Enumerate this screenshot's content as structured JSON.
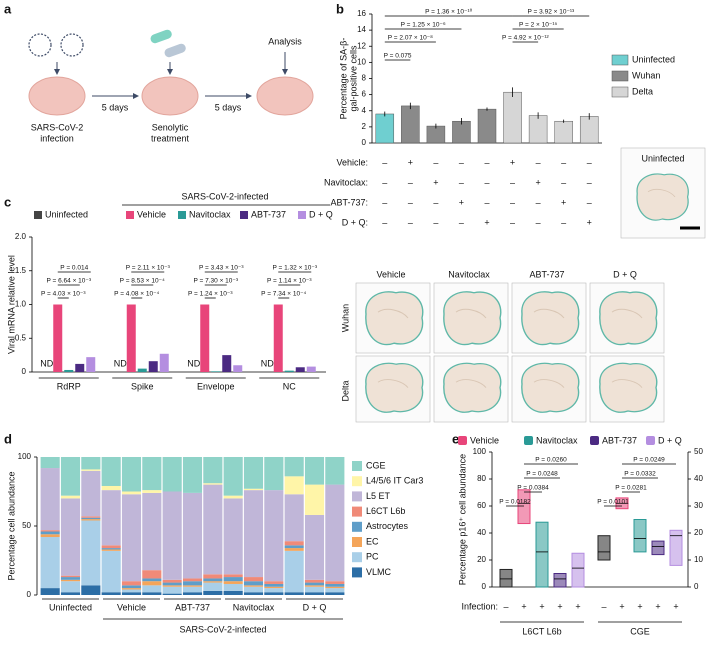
{
  "panel_labels": [
    "a",
    "b",
    "c",
    "d",
    "e"
  ],
  "diagram": {
    "steps": [
      [
        "SARS-CoV-2",
        "infection"
      ],
      [
        "Senolytic",
        "treatment"
      ],
      [
        "Analysis"
      ]
    ],
    "intervals": [
      "5 days",
      "5 days"
    ]
  },
  "micrographs": {
    "inset": "Uninfected",
    "columns": [
      "Vehicle",
      "Navitoclax",
      "ABT-737",
      "D + Q"
    ],
    "rows": [
      "Wuhan",
      "Delta"
    ]
  },
  "chart_data": [
    {
      "type": "bar",
      "ylabel": [
        "Percentage of SA-β-",
        "gal-positive cells"
      ],
      "ylim": [
        0,
        16
      ],
      "yticks": [
        0,
        2,
        4,
        6,
        8,
        10,
        12,
        14,
        16
      ],
      "values": [
        3.6,
        4.6,
        2.1,
        2.7,
        4.2,
        6.3,
        3.4,
        2.7,
        3.3
      ],
      "errors": [
        0.3,
        0.4,
        0.3,
        0.4,
        0.2,
        0.6,
        0.4,
        0.2,
        0.4
      ],
      "colors": [
        "#6fcfd0",
        "#8a8a8a",
        "#8a8a8a",
        "#8a8a8a",
        "#8a8a8a",
        "#d6d6d6",
        "#d6d6d6",
        "#d6d6d6",
        "#d6d6d6"
      ],
      "legend": [
        {
          "name": "Uninfected",
          "color": "#6fcfd0"
        },
        {
          "name": "Wuhan",
          "color": "#8a8a8a"
        },
        {
          "name": "Delta",
          "color": "#d6d6d6"
        }
      ],
      "conditions": [
        {
          "name": "Vehicle:",
          "marks": [
            "–",
            "+",
            "–",
            "–",
            "–",
            "+",
            "–",
            "–",
            "–"
          ]
        },
        {
          "name": "Navitoclax:",
          "marks": [
            "–",
            "–",
            "+",
            "–",
            "–",
            "–",
            "+",
            "–",
            "–"
          ]
        },
        {
          "name": "ABT-737:",
          "marks": [
            "–",
            "–",
            "–",
            "+",
            "–",
            "–",
            "–",
            "+",
            "–"
          ]
        },
        {
          "name": "D + Q:",
          "marks": [
            "–",
            "–",
            "–",
            "–",
            "+",
            "–",
            "–",
            "–",
            "+"
          ]
        }
      ],
      "annotations": [
        "P = 1.36 × 10⁻¹⁰",
        "P = 1.25 × 10⁻⁶",
        "P = 2.07 × 10⁻⁸",
        "P = 0.075",
        "P = 3.92 × 10⁻¹³",
        "P = 2 × 10⁻¹⁵",
        "P = 4.92 × 10⁻¹²"
      ]
    },
    {
      "type": "grouped_bar",
      "ylabel": "Viral mRNA relative level",
      "header": "SARS-CoV-2-infected",
      "ylim": [
        0,
        2
      ],
      "yticks": [
        0,
        0.5,
        {
          "value": 1,
          "label": "1.0"
        },
        1.5,
        {
          "value": 2,
          "label": "2.0"
        }
      ],
      "categories": [
        "RdRP",
        "Spike",
        "Envelope",
        "NC"
      ],
      "series": [
        {
          "name": "Uninfected",
          "color": "#444444",
          "values": [
            null,
            null,
            null,
            null
          ],
          "value_labels": [
            "ND",
            "ND",
            "ND",
            "ND"
          ]
        },
        {
          "name": "Vehicle",
          "color": "#e8457a",
          "values": [
            1.0,
            1.0,
            1.0,
            1.0
          ]
        },
        {
          "name": "Navitoclax",
          "color": "#2a9a96",
          "values": [
            0.03,
            0.05,
            0.01,
            0.02
          ]
        },
        {
          "name": "ABT-737",
          "color": "#4b2a82",
          "values": [
            0.12,
            0.16,
            0.25,
            0.07
          ]
        },
        {
          "name": "D + Q",
          "color": "#b48ee0",
          "values": [
            0.22,
            0.27,
            0.1,
            0.08
          ]
        }
      ],
      "pvalues": [
        [
          "P = 0.014",
          "P = 6.64 × 10⁻³",
          "P = 4.03 × 10⁻³"
        ],
        [
          "P = 2.11 × 10⁻³",
          "P = 8.53 × 10⁻⁴",
          "P = 4.08 × 10⁻⁴"
        ],
        [
          "P = 3.43 × 10⁻³",
          "P = 7.30 × 10⁻³",
          "P = 1.24 × 10⁻³"
        ],
        [
          "P = 1.32 × 10⁻³",
          "P = 1.14 × 10⁻³",
          "P = 7.34 × 10⁻⁴"
        ]
      ]
    },
    {
      "type": "stacked_bar",
      "ylabel": "Percentage cell abundance",
      "group_label": "SARS-CoV-2-infected",
      "ylim": [
        0,
        100
      ],
      "yticks": [
        0,
        50,
        100
      ],
      "categories": [
        "Uninfected",
        "Vehicle",
        "ABT-737",
        "Navitoclax",
        "D + Q"
      ],
      "series": [
        {
          "name": "VLMC",
          "color": "#2c6ea6",
          "values": [
            [
              5,
              2,
              7
            ],
            [
              2,
              2,
              2
            ],
            [
              1,
              2,
              3
            ],
            [
              3,
              2,
              2
            ],
            [
              2,
              2,
              2
            ]
          ]
        },
        {
          "name": "PC",
          "color": "#a9cfe8",
          "values": [
            [
              37,
              8,
              47
            ],
            [
              30,
              2,
              5
            ],
            [
              5,
              4,
              6
            ],
            [
              5,
              4,
              3
            ],
            [
              30,
              4,
              3
            ]
          ]
        },
        {
          "name": "EC",
          "color": "#f4a55a",
          "values": [
            [
              2,
              1,
              1
            ],
            [
              1,
              1,
              3
            ],
            [
              1,
              1,
              1
            ],
            [
              2,
              1,
              1
            ],
            [
              2,
              1,
              1
            ]
          ]
        },
        {
          "name": "Astrocytes",
          "color": "#5f9ec9",
          "values": [
            [
              2,
              2,
              1
            ],
            [
              1,
              2,
              2
            ],
            [
              2,
              3,
              2
            ],
            [
              3,
              3,
              2
            ],
            [
              2,
              2,
              2
            ]
          ]
        },
        {
          "name": "L6CT L6b",
          "color": "#f08a78",
          "values": [
            [
              1,
              1,
              1
            ],
            [
              2,
              3,
              6
            ],
            [
              2,
              2,
              3
            ],
            [
              2,
              3,
              2
            ],
            [
              3,
              2,
              2
            ]
          ]
        },
        {
          "name": "L5 ET",
          "color": "#c0b6d8",
          "values": [
            [
              45,
              56,
              33
            ],
            [
              40,
              63,
              56
            ],
            [
              64,
              62,
              65
            ],
            [
              55,
              63,
              66
            ],
            [
              34,
              47,
              70
            ]
          ]
        },
        {
          "name": "L4/5/6 IT Car3",
          "color": "#fff5a8",
          "values": [
            [
              0,
              2,
              1
            ],
            [
              3,
              2,
              2
            ],
            [
              0,
              0,
              1
            ],
            [
              2,
              1,
              0
            ],
            [
              13,
              22,
              0
            ]
          ]
        },
        {
          "name": "CGE",
          "color": "#8fd3c8",
          "values": [
            [
              8,
              28,
              9
            ],
            [
              21,
              25,
              24
            ],
            [
              25,
              26,
              19
            ],
            [
              28,
              23,
              24
            ],
            [
              14,
              20,
              20
            ]
          ]
        }
      ]
    },
    {
      "type": "range_box",
      "ylabel": "Percentage p16⁺ cell abundance",
      "ylim": [
        0,
        100
      ],
      "yticks": [
        0,
        20,
        40,
        60,
        80,
        100
      ],
      "y2lim": [
        0,
        50
      ],
      "y2ticks": [
        0,
        10,
        20,
        30,
        40,
        50
      ],
      "categories": [
        "L6CT L6b",
        "CGE"
      ],
      "category_axes": [
        "y",
        "y2"
      ],
      "infection_label": "Infection:",
      "infection_marks": [
        "–",
        "+",
        "+",
        "+",
        "+"
      ],
      "series": [
        {
          "color": "#222222",
          "min": [
            0,
            10
          ],
          "median": [
            6,
            13
          ],
          "max": [
            13,
            19
          ]
        },
        {
          "name": "Vehicle",
          "color": "#e8457a",
          "min": [
            47,
            29
          ],
          "median": [
            62,
            31
          ],
          "max": [
            72,
            33
          ]
        },
        {
          "name": "Navitoclax",
          "color": "#2a9a96",
          "min": [
            0,
            13
          ],
          "median": [
            26,
            18
          ],
          "max": [
            48,
            25
          ]
        },
        {
          "name": "ABT-737",
          "color": "#4b2a82",
          "min": [
            0,
            12
          ],
          "median": [
            6,
            15
          ],
          "max": [
            10,
            17
          ]
        },
        {
          "name": "D + Q",
          "color": "#b48ee0",
          "min": [
            0,
            8
          ],
          "median": [
            14,
            19
          ],
          "max": [
            25,
            21
          ]
        }
      ],
      "pvalues": [
        [
          "P = 0.0260",
          "P = 0.0248",
          "P = 0.0384",
          "P = 0.0182"
        ],
        [
          "P = 0.0249",
          "P = 0.0332",
          "P = 0.0281",
          "P = 0.0101"
        ]
      ]
    }
  ]
}
